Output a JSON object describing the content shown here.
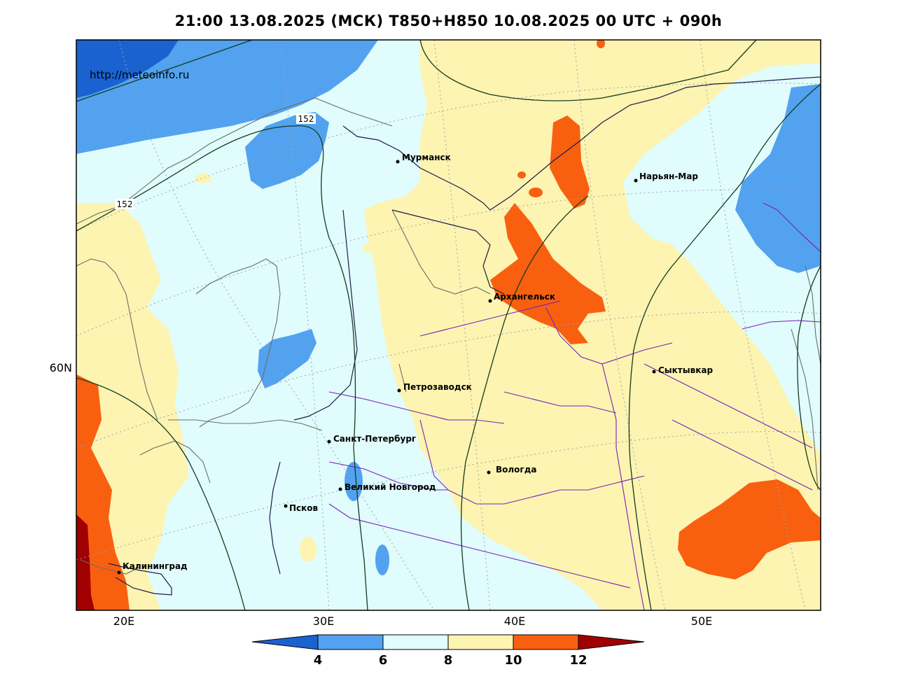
{
  "title": "21:00 13.08.2025 (МСК) T850+H850 10.08.2025 00 UTC + 090h",
  "source_url": "http://meteoinfo.ru",
  "axis": {
    "lat_labels": [
      "60N"
    ],
    "lon_labels": [
      "20E",
      "30E",
      "40E",
      "50E"
    ]
  },
  "cities": [
    {
      "name": "Мурманск"
    },
    {
      "name": "Нарьян-Мар"
    },
    {
      "name": "Архангельск"
    },
    {
      "name": "Петрозаводск"
    },
    {
      "name": "Сыктывкар"
    },
    {
      "name": "Санкт-Петербург"
    },
    {
      "name": "Вологда"
    },
    {
      "name": "Великий Новгород"
    },
    {
      "name": "Псков"
    },
    {
      "name": "Калининград"
    }
  ],
  "contour_labels": [
    "152",
    "152"
  ],
  "colorbar": {
    "ticks": [
      "4",
      "6",
      "8",
      "10",
      "12"
    ],
    "colors": [
      "#1a62d0",
      "#52a2f0",
      "#e0fcfc",
      "#fcf4b0",
      "#f86010",
      "#a00000"
    ]
  },
  "colors": {
    "c4": "#1a62d0",
    "c6": "#52a2f0",
    "c8": "#e0fcfc",
    "c10": "#fcf4b0",
    "c12": "#f86010",
    "c14": "#a00000"
  }
}
